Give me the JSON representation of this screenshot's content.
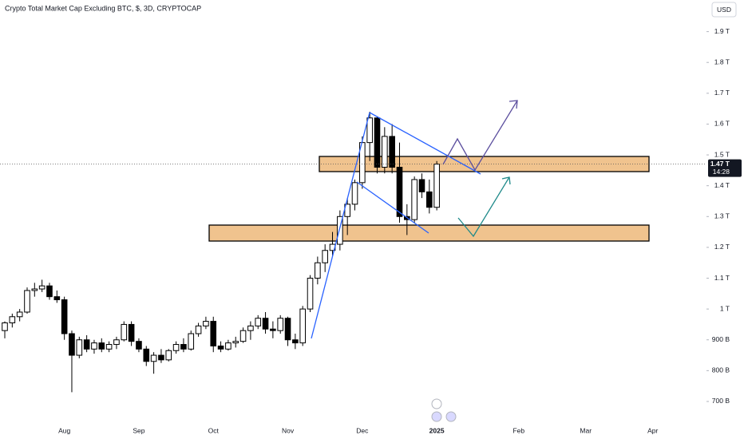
{
  "chart_data": {
    "type": "candlestick",
    "title": "Crypto Total Market Cap Excluding BTC, $, 3D, CRYPTOCAP",
    "currency": "USD",
    "categories": [
      null,
      null,
      null,
      null,
      null,
      null,
      null,
      null,
      "Aug",
      null,
      null,
      null,
      null,
      null,
      null,
      null,
      null,
      null,
      "Sep",
      null,
      null,
      null,
      null,
      null,
      null,
      null,
      null,
      null,
      "Oct",
      null,
      null,
      null,
      null,
      null,
      null,
      null,
      null,
      null,
      "Nov",
      null,
      null,
      null,
      null,
      null,
      null,
      null,
      null,
      null,
      "Dec",
      null,
      null,
      null,
      null,
      null,
      null,
      null,
      null,
      null,
      "2025",
      null,
      null,
      null,
      null,
      null,
      null,
      null,
      null,
      null,
      null,
      "Feb",
      null,
      null,
      null,
      null,
      null,
      null,
      null,
      null,
      "Mar",
      null,
      null,
      null,
      null,
      null,
      null,
      null,
      null,
      "Apr",
      null,
      null,
      null,
      null,
      null,
      null,
      null
    ],
    "open": [
      930,
      955,
      975,
      990,
      1060,
      1065,
      1075,
      1040,
      1030,
      920,
      850,
      900,
      870,
      890,
      870,
      885,
      900,
      950,
      895,
      870,
      830,
      850,
      835,
      865,
      885,
      870,
      920,
      945,
      960,
      880,
      870,
      890,
      895,
      930,
      945,
      970,
      935,
      930,
      970,
      900,
      890,
      1000,
      1100,
      1150,
      1190,
      1210,
      1300,
      1340,
      1410,
      1540,
      1620,
      1460,
      1560,
      1460,
      1300,
      1290,
      1420,
      1380,
      1330,
      null,
      null,
      null,
      null,
      null,
      null,
      null,
      null,
      null,
      null,
      null,
      null,
      null,
      null,
      null,
      null,
      null,
      null,
      null,
      null,
      null,
      null,
      null,
      null,
      null,
      null,
      null,
      null,
      null,
      null,
      null,
      null,
      null,
      null,
      null,
      null
    ],
    "high": [
      960,
      985,
      1000,
      1070,
      1085,
      1095,
      1085,
      1060,
      1040,
      930,
      910,
      915,
      900,
      905,
      895,
      910,
      960,
      960,
      905,
      880,
      860,
      870,
      870,
      895,
      905,
      930,
      955,
      975,
      975,
      895,
      900,
      910,
      940,
      960,
      980,
      990,
      960,
      980,
      975,
      920,
      1010,
      1110,
      1170,
      1210,
      1250,
      1320,
      1360,
      1420,
      1560,
      1640,
      1625,
      1590,
      1600,
      1540,
      1340,
      1430,
      1440,
      1420,
      1480,
      null,
      null,
      null,
      null,
      null,
      null,
      null,
      null,
      null,
      null,
      null,
      null,
      null,
      null,
      null,
      null,
      null,
      null,
      null,
      null,
      null,
      null,
      null,
      null,
      null,
      null,
      null,
      null,
      null,
      null,
      null,
      null,
      null,
      null,
      null,
      null
    ],
    "low": [
      905,
      940,
      960,
      985,
      1040,
      1055,
      1030,
      1020,
      900,
      730,
      840,
      860,
      855,
      860,
      860,
      870,
      895,
      880,
      860,
      815,
      790,
      825,
      830,
      855,
      860,
      865,
      910,
      935,
      860,
      860,
      865,
      875,
      890,
      900,
      935,
      920,
      905,
      920,
      880,
      870,
      880,
      990,
      1080,
      1120,
      1170,
      1190,
      1240,
      1320,
      1390,
      1480,
      1440,
      1440,
      1440,
      1280,
      1240,
      1280,
      1360,
      1310,
      1320,
      null,
      null,
      null,
      null,
      null,
      null,
      null,
      null,
      null,
      null,
      null,
      null,
      null,
      null,
      null,
      null,
      null,
      null,
      null,
      null,
      null,
      null,
      null,
      null,
      null,
      null,
      null,
      null,
      null,
      null,
      null,
      null,
      null,
      null,
      null,
      null
    ],
    "close": [
      955,
      975,
      990,
      1060,
      1065,
      1075,
      1040,
      1030,
      920,
      850,
      900,
      870,
      890,
      870,
      885,
      900,
      950,
      895,
      870,
      830,
      850,
      835,
      865,
      885,
      870,
      920,
      945,
      960,
      880,
      870,
      890,
      895,
      930,
      945,
      970,
      935,
      930,
      970,
      900,
      890,
      1000,
      1100,
      1150,
      1190,
      1210,
      1300,
      1340,
      1410,
      1540,
      1620,
      1460,
      1560,
      1460,
      1300,
      1290,
      1420,
      1380,
      1330,
      1470,
      null,
      null,
      null,
      null,
      null,
      null,
      null,
      null,
      null,
      null,
      null,
      null,
      null,
      null,
      null,
      null,
      null,
      null,
      null,
      null,
      null,
      null,
      null,
      null,
      null,
      null,
      null,
      null,
      null,
      null,
      null,
      null,
      null,
      null,
      null,
      null
    ],
    "up_color": "#ffffff",
    "down_color": "#000000",
    "ylim": [
      630,
      2000
    ],
    "yticks": [
      {
        "value": 1900,
        "label": "1.9 T"
      },
      {
        "value": 1800,
        "label": "1.8 T"
      },
      {
        "value": 1700,
        "label": "1.7 T"
      },
      {
        "value": 1600,
        "label": "1.6 T"
      },
      {
        "value": 1500,
        "label": "1.5 T"
      },
      {
        "value": 1400,
        "label": "1.4 T"
      },
      {
        "value": 1300,
        "label": "1.3 T"
      },
      {
        "value": 1200,
        "label": "1.2 T"
      },
      {
        "value": 1100,
        "label": "1.1 T"
      },
      {
        "value": 1000,
        "label": "1 T"
      },
      {
        "value": 900,
        "label": "900 B"
      },
      {
        "value": 800,
        "label": "800 B"
      },
      {
        "value": 700,
        "label": "700 B"
      }
    ],
    "last_price": {
      "value": 1470,
      "label": "1.47 T"
    },
    "countdown": "14:28",
    "grid": false
  }
}
